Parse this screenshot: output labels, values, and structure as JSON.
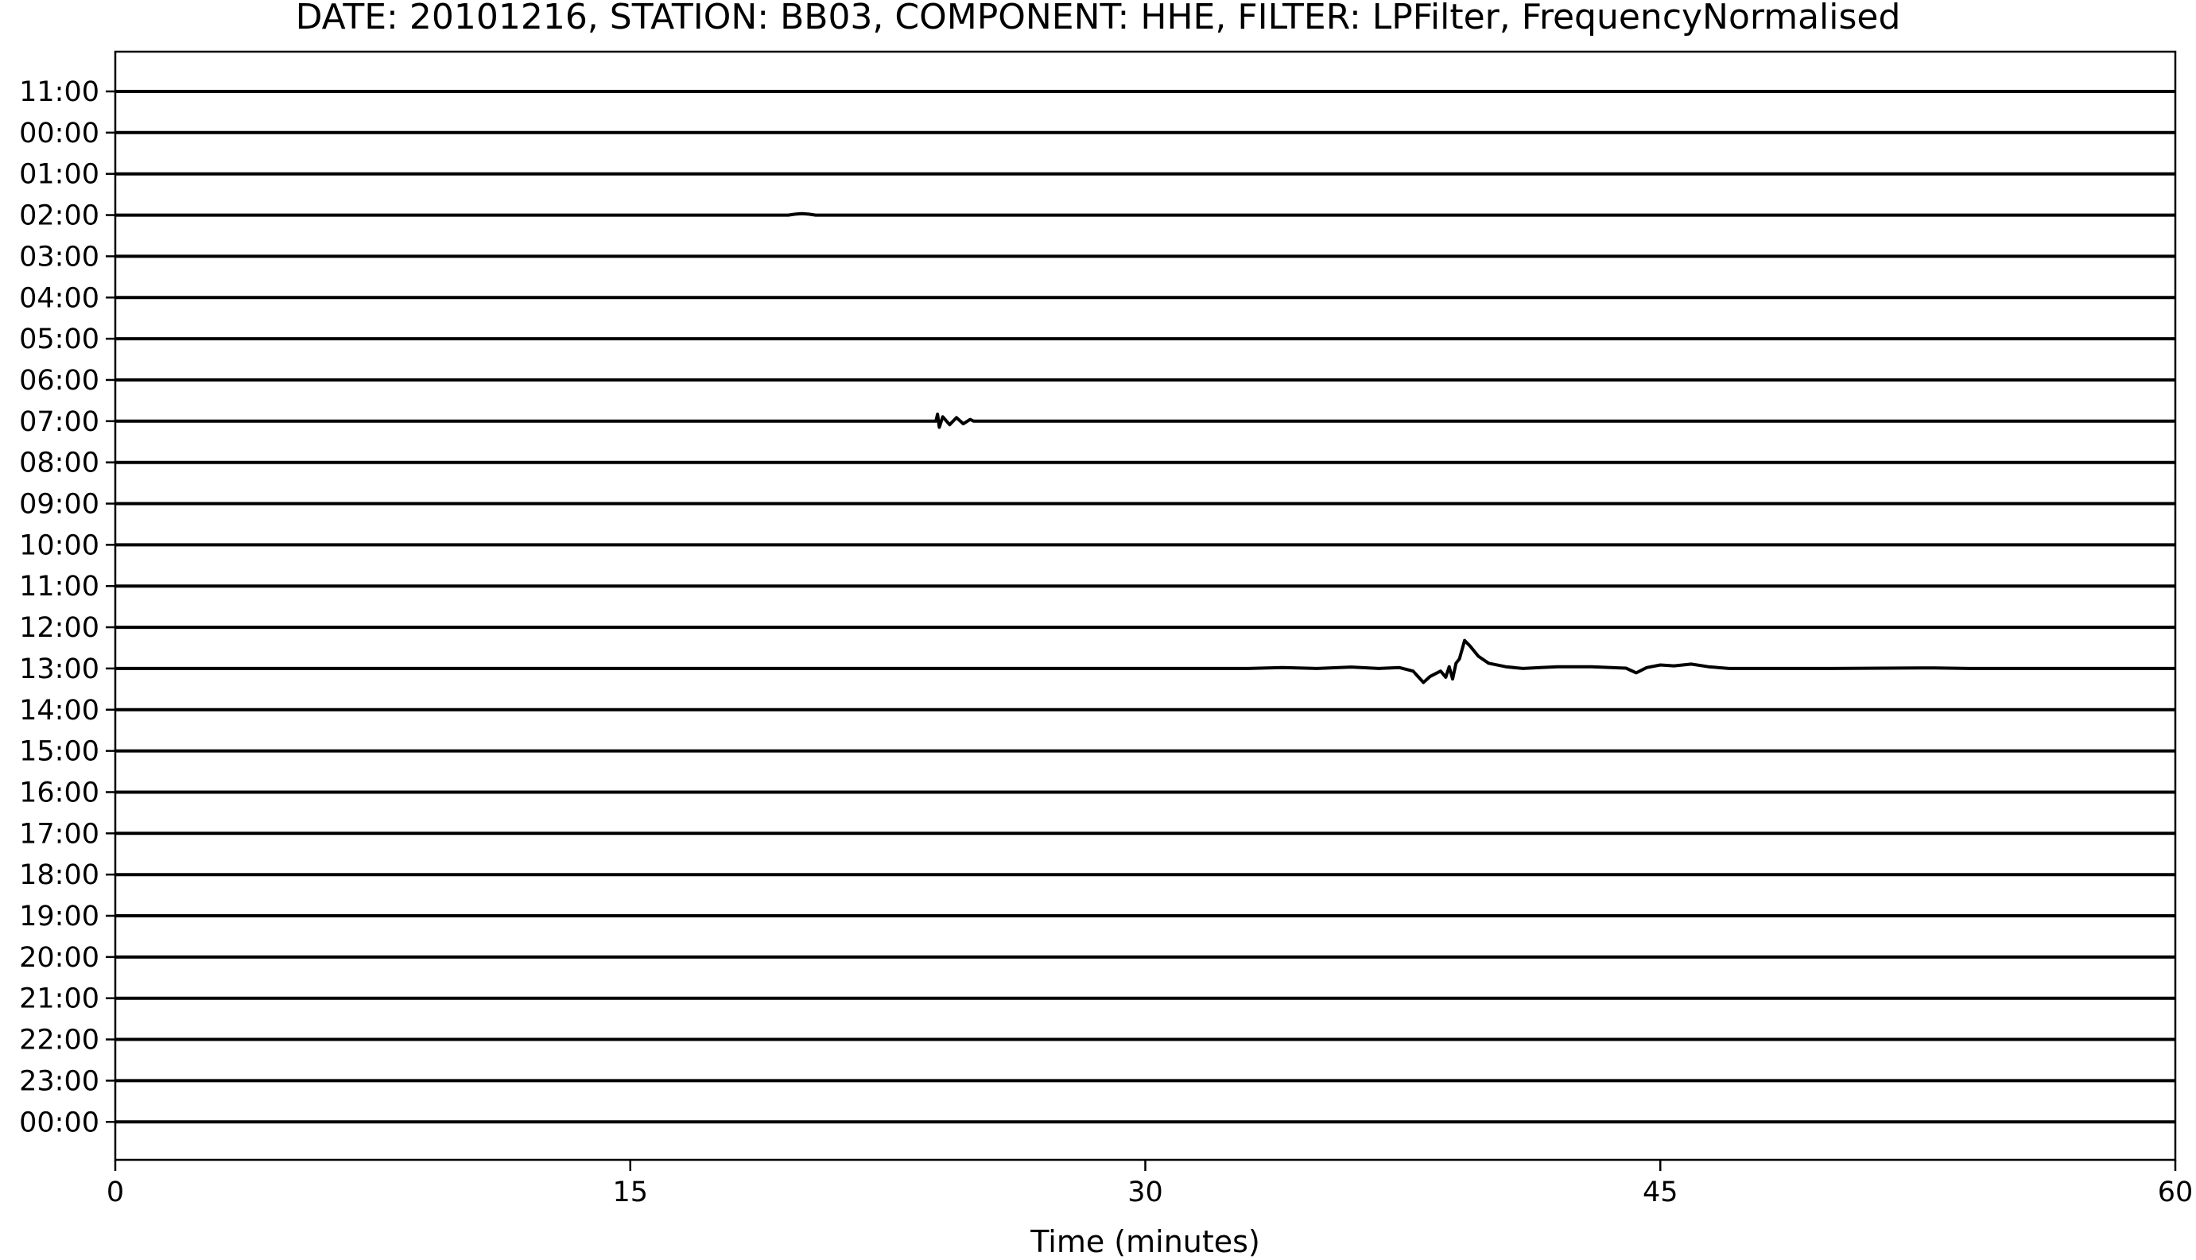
{
  "chart_data": {
    "type": "line",
    "title": "DATE: 20101216, STATION: BB03, COMPONENT: HHE, FILTER: LPFilter, FrequencyNormalised",
    "xlabel": "Time (minutes)",
    "ylabel": "",
    "xlim": [
      0,
      60
    ],
    "x_ticks": [
      0,
      15,
      30,
      45,
      60
    ],
    "grid": false,
    "legend": "none",
    "line_color": "#000000",
    "trace_labels": [
      "11:00",
      "00:00",
      "01:00",
      "02:00",
      "03:00",
      "04:00",
      "05:00",
      "06:00",
      "07:00",
      "08:00",
      "09:00",
      "10:00",
      "11:00",
      "12:00",
      "13:00",
      "14:00",
      "15:00",
      "16:00",
      "17:00",
      "18:00",
      "19:00",
      "20:00",
      "21:00",
      "22:00",
      "23:00",
      "00:00"
    ],
    "events": [
      {
        "trace_index": 3,
        "points": [
          [
            19.6,
            0
          ],
          [
            19.8,
            0.05
          ],
          [
            20.0,
            0.08
          ],
          [
            20.2,
            0.05
          ],
          [
            20.4,
            0
          ]
        ]
      },
      {
        "trace_index": 8,
        "points": [
          [
            23.9,
            0
          ],
          [
            23.95,
            0.4
          ],
          [
            24.0,
            -0.35
          ],
          [
            24.1,
            0.25
          ],
          [
            24.3,
            -0.2
          ],
          [
            24.5,
            0.2
          ],
          [
            24.7,
            -0.15
          ],
          [
            24.9,
            0.1
          ],
          [
            25.0,
            0
          ]
        ]
      },
      {
        "trace_index": 14,
        "points": [
          [
            0,
            0
          ],
          [
            33.0,
            0
          ],
          [
            34.0,
            0.05
          ],
          [
            35.0,
            0
          ],
          [
            36.0,
            0.08
          ],
          [
            36.8,
            0
          ],
          [
            37.4,
            0.05
          ],
          [
            37.8,
            -0.15
          ],
          [
            38.1,
            -0.8
          ],
          [
            38.3,
            -0.45
          ],
          [
            38.6,
            -0.15
          ],
          [
            38.75,
            -0.5
          ],
          [
            38.85,
            0.1
          ],
          [
            38.95,
            -0.6
          ],
          [
            39.05,
            0.3
          ],
          [
            39.15,
            0.55
          ],
          [
            39.3,
            1.6
          ],
          [
            39.45,
            1.3
          ],
          [
            39.7,
            0.7
          ],
          [
            40.0,
            0.3
          ],
          [
            40.5,
            0.1
          ],
          [
            41.0,
            0
          ],
          [
            41.5,
            0.05
          ],
          [
            42.0,
            0.1
          ],
          [
            43.0,
            0.1
          ],
          [
            44.0,
            0.02
          ],
          [
            44.3,
            -0.25
          ],
          [
            44.6,
            0.05
          ],
          [
            45.0,
            0.2
          ],
          [
            45.4,
            0.15
          ],
          [
            45.9,
            0.25
          ],
          [
            46.4,
            0.1
          ],
          [
            47.0,
            0
          ],
          [
            50.0,
            0
          ],
          [
            53.0,
            0.03
          ],
          [
            54.0,
            0
          ],
          [
            60,
            0
          ]
        ]
      }
    ]
  }
}
